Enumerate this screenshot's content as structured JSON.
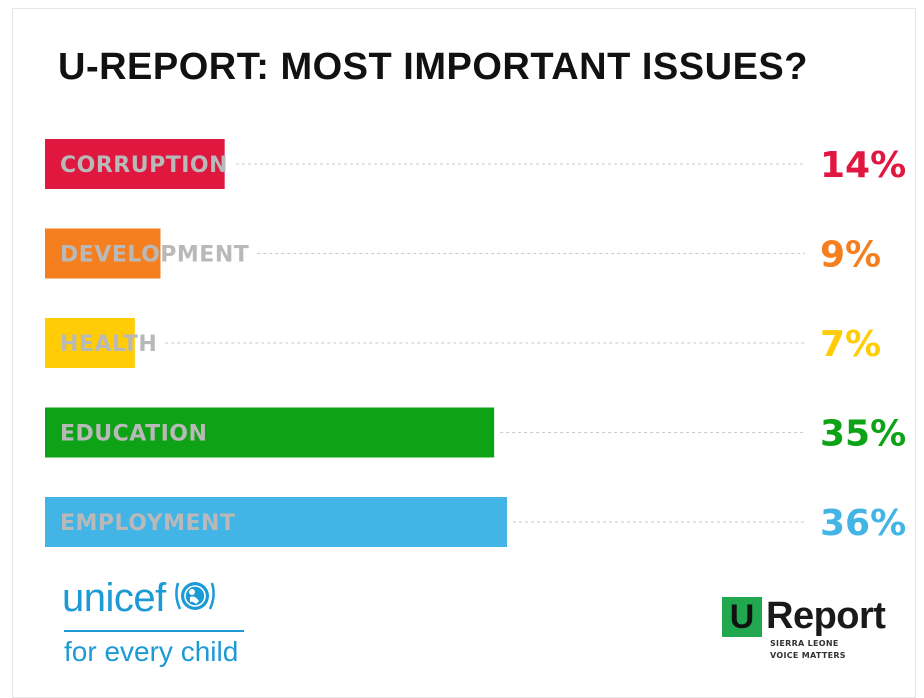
{
  "chart_data": {
    "type": "bar",
    "orientation": "horizontal",
    "title": "U-REPORT: MOST IMPORTANT ISSUES?",
    "categories": [
      "CORRUPTION",
      "DEVELOPMENT",
      "HEALTH",
      "EDUCATION",
      "EMPLOYMENT"
    ],
    "values": [
      14,
      9,
      7,
      35,
      36
    ],
    "value_labels": [
      "14%",
      "9%",
      "7%",
      "35%",
      "36%"
    ],
    "colors": [
      "#e0173f",
      "#f57f1f",
      "#ffcc05",
      "#0ea316",
      "#42b4e6"
    ],
    "xlim": [
      0,
      36
    ],
    "grid": false,
    "legend": "none"
  },
  "branding": {
    "unicef_word": "unicef",
    "unicef_tagline": "for every child",
    "unicef_color": "#1b9ad6",
    "ureport_box_letter": "U",
    "ureport_word": "Report",
    "ureport_sub1": "SIERRA LEONE",
    "ureport_sub2": "VOICE MATTERS",
    "ureport_color": "#21a84f"
  }
}
